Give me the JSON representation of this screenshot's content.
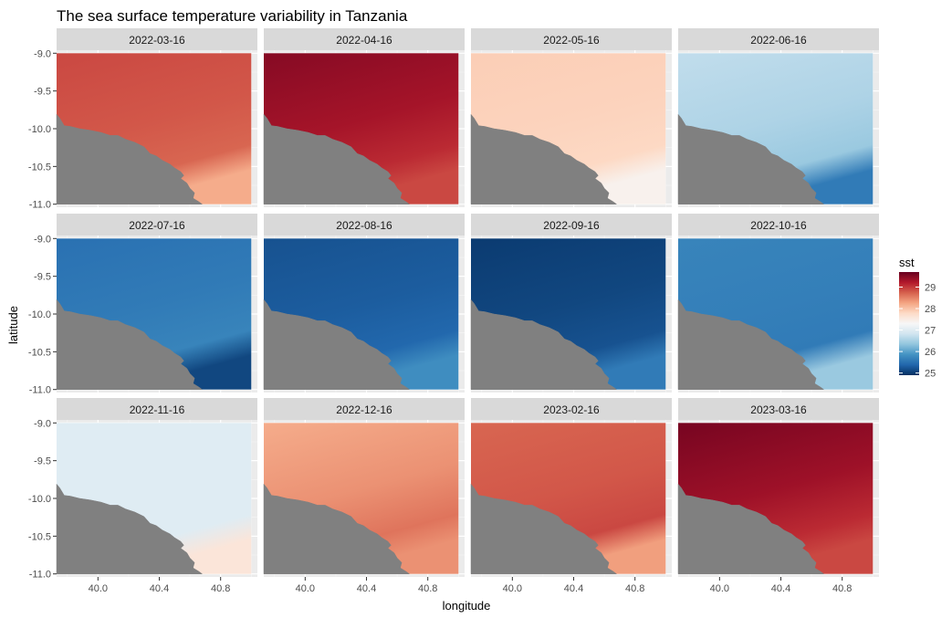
{
  "chart_data": {
    "type": "heatmap",
    "title": "The sea surface temperature variability in Tanzania",
    "xlabel": "longitude",
    "ylabel": "latitude",
    "x_ticks": [
      40.0,
      40.4,
      40.8
    ],
    "x_tick_labels": [
      "40.0",
      "40.4",
      "40.8"
    ],
    "y_ticks": [
      -9.0,
      -9.5,
      -10.0,
      -10.5,
      -11.0
    ],
    "y_tick_labels": [
      "-9.0",
      "-9.5",
      "-10.0",
      "-10.5",
      "-11.0"
    ],
    "xlim": [
      39.73,
      41.04
    ],
    "ylim": [
      -11.04,
      -8.96
    ],
    "data_extent": {
      "lon": [
        39.73,
        41.0
      ],
      "lat": [
        -11.0,
        -9.0
      ]
    },
    "land_color": "#808080",
    "panel_background": "#ebebeb",
    "strip_background": "#d9d9d9",
    "legend": {
      "title": "sst",
      "placement": "right",
      "range": [
        24.9,
        29.7
      ],
      "breaks": [
        25,
        26,
        27,
        28,
        29
      ],
      "labels": [
        "25",
        "26",
        "27",
        "28",
        "29"
      ],
      "palette": [
        "#053061",
        "#2166ac",
        "#4393c3",
        "#92c5de",
        "#d1e5f0",
        "#f7f7f7",
        "#fddbc7",
        "#f4a582",
        "#d6604d",
        "#b2182b",
        "#67001f"
      ]
    },
    "facets": [
      {
        "label": "2022-03-16",
        "sst_north": 28.9,
        "sst_south": 28.7,
        "sst_nearshore": 28.2
      },
      {
        "label": "2022-04-16",
        "sst_north": 29.5,
        "sst_south": 29.1,
        "sst_nearshore": 28.9
      },
      {
        "label": "2022-05-16",
        "sst_north": 27.9,
        "sst_south": 27.8,
        "sst_nearshore": 27.4
      },
      {
        "label": "2022-06-16",
        "sst_north": 26.7,
        "sst_south": 26.4,
        "sst_nearshore": 25.6
      },
      {
        "label": "2022-07-16",
        "sst_north": 25.5,
        "sst_south": 25.7,
        "sst_nearshore": 25.1
      },
      {
        "label": "2022-08-16",
        "sst_north": 25.2,
        "sst_south": 25.4,
        "sst_nearshore": 25.8
      },
      {
        "label": "2022-09-16",
        "sst_north": 25.0,
        "sst_south": 25.2,
        "sst_nearshore": 25.6
      },
      {
        "label": "2022-10-16",
        "sst_north": 25.7,
        "sst_south": 25.6,
        "sst_nearshore": 26.4
      },
      {
        "label": "2022-11-16",
        "sst_north": 27.0,
        "sst_south": 27.0,
        "sst_nearshore": 27.6
      },
      {
        "label": "2022-12-16",
        "sst_north": 28.2,
        "sst_south": 28.6,
        "sst_nearshore": 28.4
      },
      {
        "label": "2023-02-16",
        "sst_north": 28.7,
        "sst_south": 28.9,
        "sst_nearshore": 28.3
      },
      {
        "label": "2023-03-16",
        "sst_north": 29.6,
        "sst_south": 29.1,
        "sst_nearshore": 28.9
      }
    ]
  }
}
